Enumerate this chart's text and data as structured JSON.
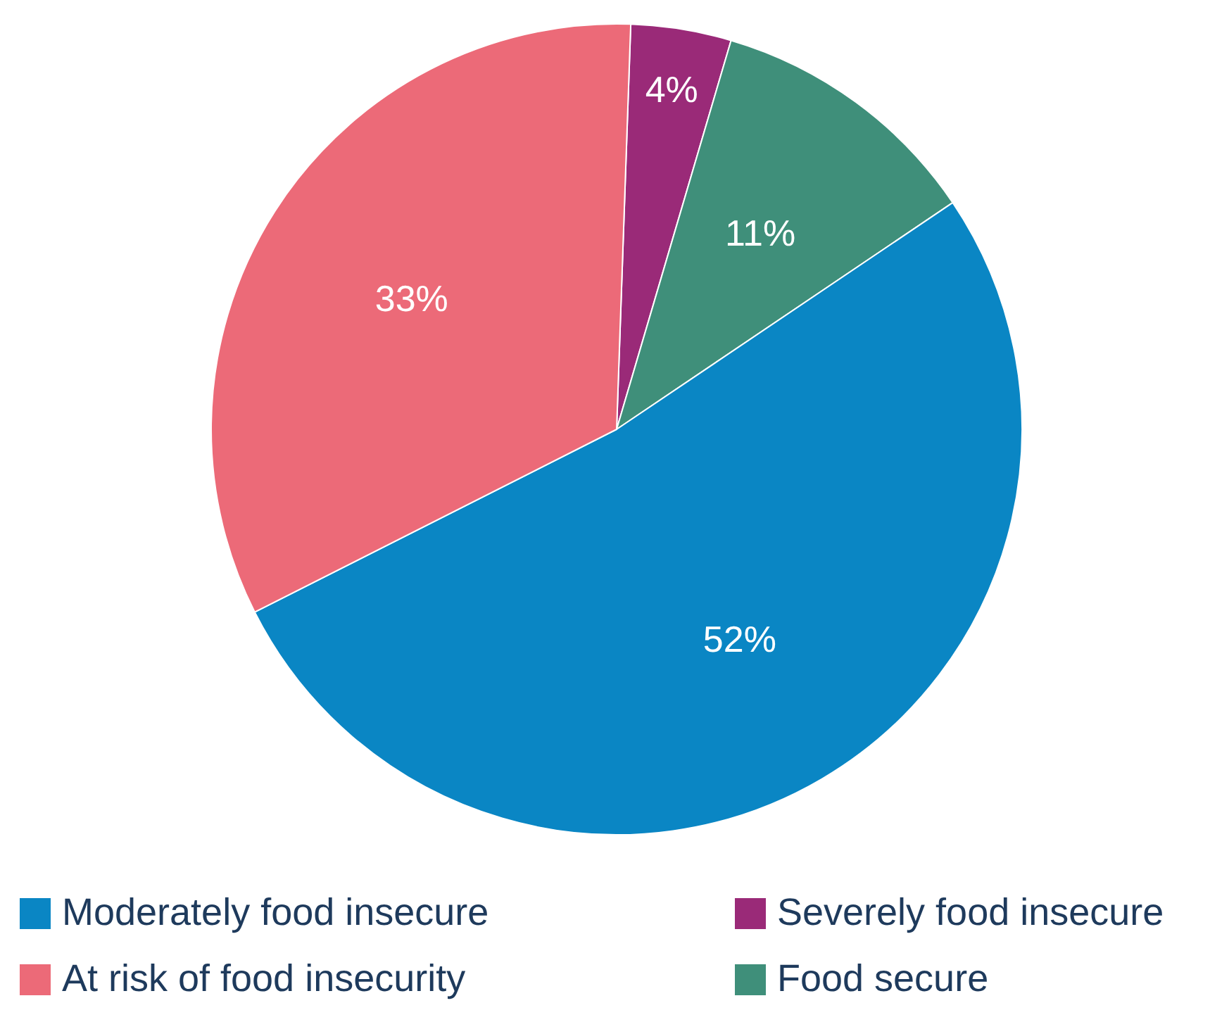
{
  "chart_data": {
    "type": "pie",
    "categories": [
      "Severely food insecure",
      "Food secure",
      "Moderately food insecure",
      "At risk of food insecurity"
    ],
    "values": [
      4,
      11,
      52,
      33
    ],
    "colors": [
      "#9a2a78",
      "#3f8f7a",
      "#0a86c4",
      "#ec6a78"
    ],
    "value_labels": [
      "4%",
      "11%",
      "52%",
      "33%"
    ],
    "legend": "bottom"
  }
}
